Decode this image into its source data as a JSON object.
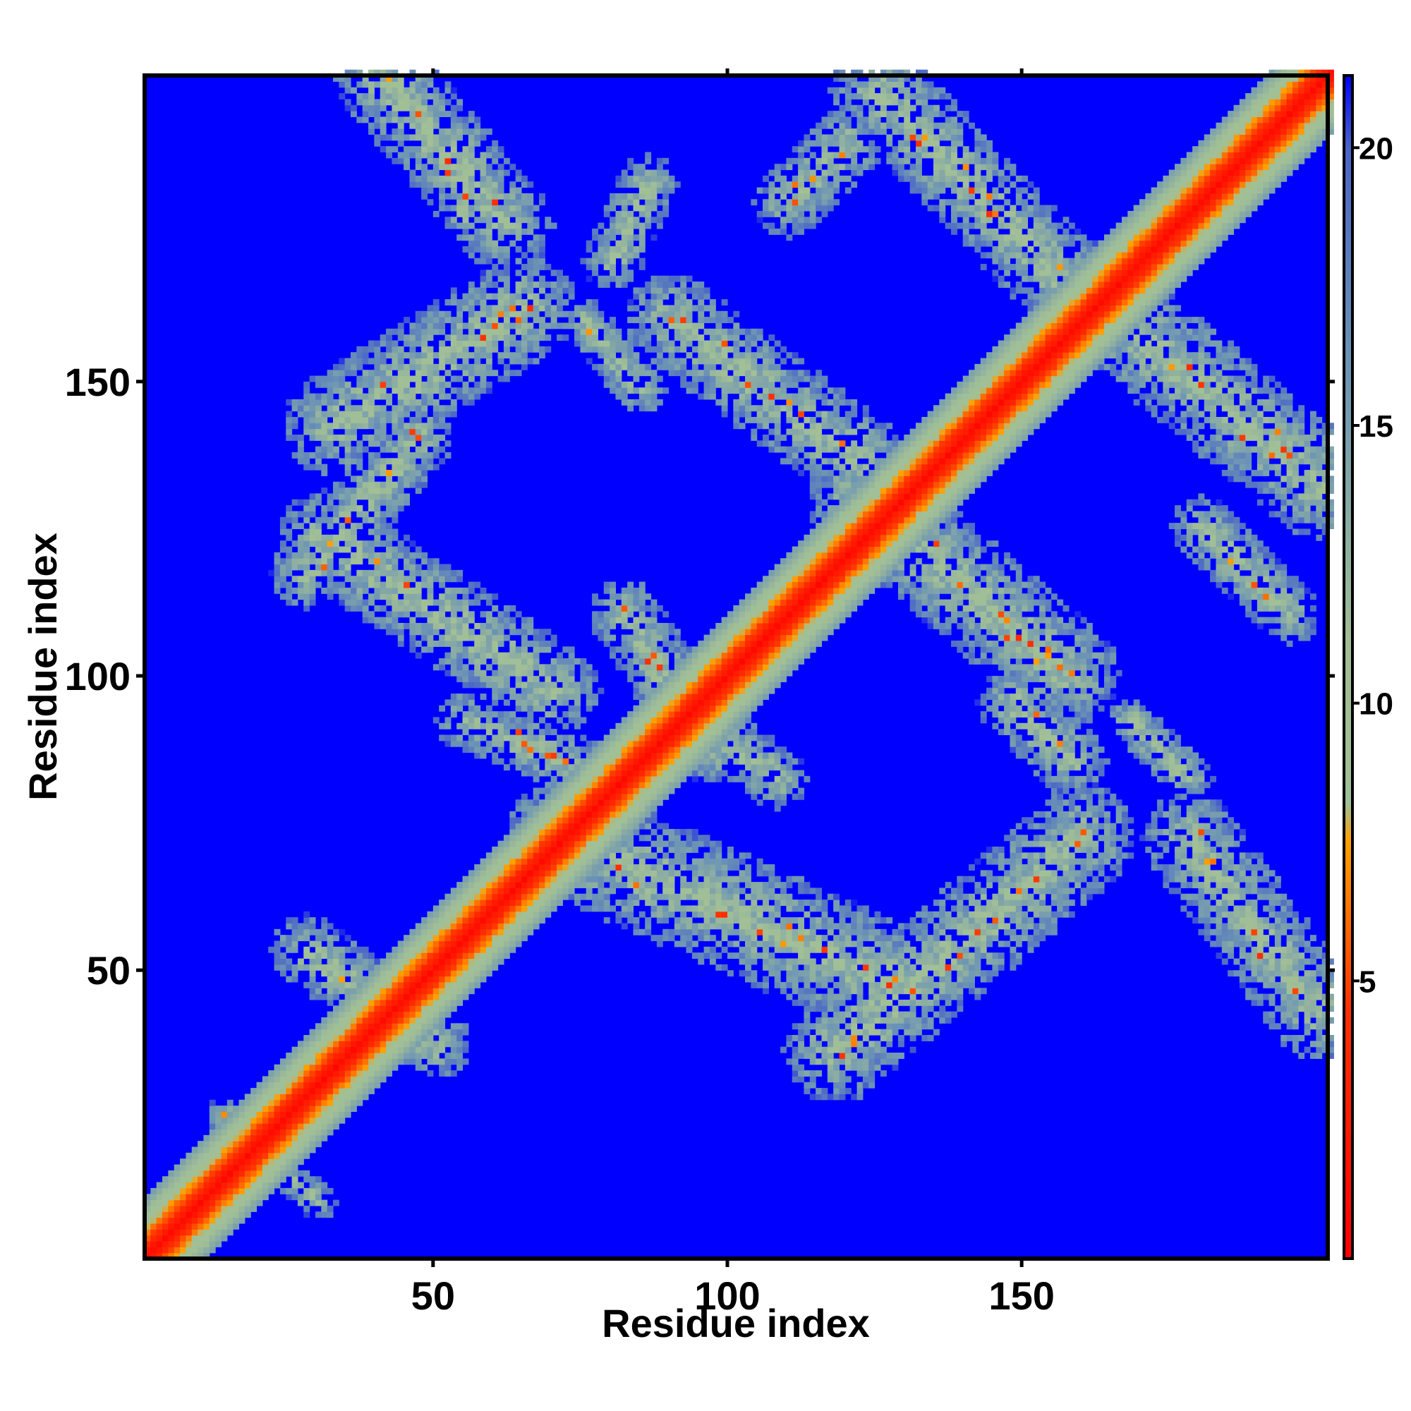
{
  "chart_data": {
    "type": "heatmap",
    "title": "",
    "xlabel": "Residue index",
    "ylabel": "Residue index",
    "xlim": [
      1,
      202
    ],
    "ylim": [
      1,
      202
    ],
    "xticks": [
      50,
      100,
      150
    ],
    "yticks": [
      50,
      100,
      150
    ],
    "colorbar": {
      "ticks": [
        5,
        10,
        15,
        20
      ],
      "range": [
        0,
        21.3
      ],
      "stops": [
        {
          "value": 0,
          "color": "#ff0000"
        },
        {
          "value": 4.5,
          "color": "#ff3000"
        },
        {
          "value": 7.5,
          "color": "#ffa000"
        },
        {
          "value": 8.2,
          "color": "#9fc09a"
        },
        {
          "value": 11,
          "color": "#a2bf96"
        },
        {
          "value": 16,
          "color": "#6d95b4"
        },
        {
          "value": 20,
          "color": "#4a64c8"
        },
        {
          "value": 21.3,
          "color": "#0000ff"
        }
      ]
    },
    "background_value": 21.3,
    "background_color": "#0000ff",
    "diagonal": {
      "core_value": 1,
      "halfwidth_residues": 10
    },
    "contact_bands": [
      {
        "from": [
          41,
          201
        ],
        "to": [
          62,
          176
        ],
        "width": 8
      },
      {
        "from": [
          55,
          178
        ],
        "to": [
          55,
          190
        ],
        "width": 4
      },
      {
        "from": [
          33,
          142
        ],
        "to": [
          65,
          162
        ],
        "width": 9
      },
      {
        "from": [
          28,
          117
        ],
        "to": [
          47,
          140
        ],
        "width": 6
      },
      {
        "from": [
          31,
          123
        ],
        "to": [
          70,
          97
        ],
        "width": 8
      },
      {
        "from": [
          55,
          92
        ],
        "to": [
          80,
          82
        ],
        "width": 5
      },
      {
        "from": [
          86,
          183
        ],
        "to": [
          80,
          170
        ],
        "width": 5
      },
      {
        "from": [
          90,
          160
        ],
        "to": [
          130,
          130
        ],
        "width": 8
      },
      {
        "from": [
          75,
          160
        ],
        "to": [
          85,
          148
        ],
        "width": 4
      },
      {
        "from": [
          125,
          199
        ],
        "to": [
          158,
          165
        ],
        "width": 8
      },
      {
        "from": [
          110,
          180
        ],
        "to": [
          120,
          190
        ],
        "width": 6
      },
      {
        "from": [
          160,
          165
        ],
        "to": [
          200,
          132
        ],
        "width": 9
      },
      {
        "from": [
          180,
          125
        ],
        "to": [
          195,
          110
        ],
        "width": 5
      },
      {
        "from": [
          122,
          130
        ],
        "to": [
          157,
          100
        ],
        "width": 9
      },
      {
        "from": [
          148,
          95
        ],
        "to": [
          158,
          85
        ],
        "width": 6
      },
      {
        "from": [
          168,
          92
        ],
        "to": [
          178,
          82
        ],
        "width": 4
      },
      {
        "from": [
          82,
          110
        ],
        "to": [
          97,
          87
        ],
        "width": 6
      },
      {
        "from": [
          95,
          92
        ],
        "to": [
          108,
          82
        ],
        "width": 5
      },
      {
        "from": [
          72,
          72
        ],
        "to": [
          128,
          47
        ],
        "width": 10
      },
      {
        "from": [
          118,
          36
        ],
        "to": [
          160,
          72
        ],
        "width": 9
      },
      {
        "from": [
          178,
          72
        ],
        "to": [
          200,
          42
        ],
        "width": 8
      },
      {
        "from": [
          28,
          53
        ],
        "to": [
          50,
          37
        ],
        "width": 6
      },
      {
        "from": [
          14,
          25
        ],
        "to": [
          30,
          10
        ],
        "width": 3
      }
    ]
  }
}
